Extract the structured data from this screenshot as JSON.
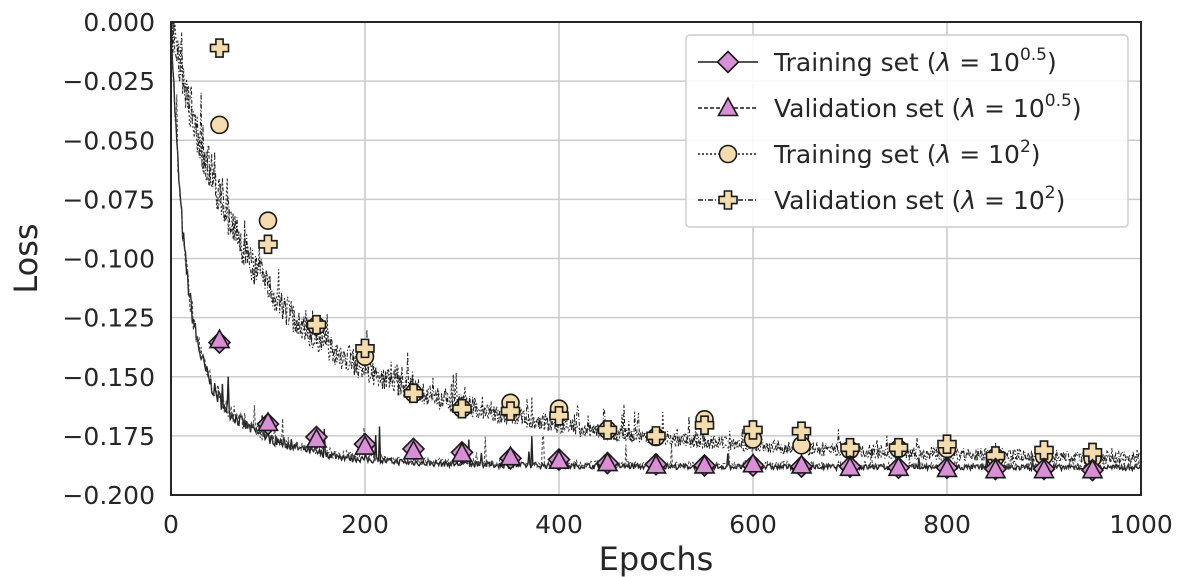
{
  "chart_data": {
    "type": "line",
    "xlabel": "Epochs",
    "ylabel": "Loss",
    "xlim": [
      0,
      1000
    ],
    "ylim": [
      -0.2,
      0.0
    ],
    "xticks": [
      0,
      200,
      400,
      600,
      800,
      1000
    ],
    "xtick_labels": [
      "0",
      "200",
      "400",
      "600",
      "800",
      "1000"
    ],
    "yticks": [
      0.0,
      -0.025,
      -0.05,
      -0.075,
      -0.1,
      -0.125,
      -0.15,
      -0.175,
      -0.2
    ],
    "ytick_labels": [
      "0.000",
      "−0.025",
      "−0.050",
      "−0.075",
      "−0.100",
      "−0.125",
      "−0.150",
      "−0.175",
      "−0.200"
    ],
    "grid": true,
    "legend_position": "top-right",
    "marker_x": [
      50,
      100,
      150,
      200,
      250,
      300,
      350,
      400,
      450,
      500,
      550,
      600,
      650,
      700,
      750,
      800,
      850,
      900,
      950
    ],
    "series": [
      {
        "name": "Training set (λ = 10^0.5)",
        "legend_parts": [
          "Training set (",
          "λ",
          " = 10",
          "0.5",
          ")"
        ],
        "marker": "diamond",
        "fill": "#d98fd6",
        "line_style": "solid",
        "values": [
          -0.1355,
          -0.17,
          -0.1755,
          -0.1785,
          -0.1805,
          -0.182,
          -0.1845,
          -0.185,
          -0.1865,
          -0.187,
          -0.1875,
          -0.1875,
          -0.188,
          -0.188,
          -0.1885,
          -0.1885,
          -0.189,
          -0.189,
          -0.1895
        ]
      },
      {
        "name": "Validation set (λ = 10^0.5)",
        "legend_parts": [
          "Validation set (",
          "λ",
          " = 10",
          "0.5",
          ")"
        ],
        "marker": "triangle",
        "fill": "#d98fd6",
        "line_style": "dashed",
        "values": [
          -0.1345,
          -0.1695,
          -0.1765,
          -0.1795,
          -0.1815,
          -0.1825,
          -0.184,
          -0.1855,
          -0.1865,
          -0.1875,
          -0.1875,
          -0.187,
          -0.1875,
          -0.1885,
          -0.1885,
          -0.189,
          -0.1895,
          -0.1895,
          -0.1895
        ]
      },
      {
        "name": "Training set (λ = 10^2)",
        "legend_parts": [
          "Training set (",
          "λ",
          " = 10",
          "2",
          ")"
        ],
        "marker": "circle",
        "fill": "#f5dcae",
        "line_style": "dotted",
        "values": [
          -0.0435,
          -0.084,
          -0.1285,
          -0.1415,
          -0.157,
          -0.1635,
          -0.161,
          -0.1635,
          -0.1725,
          -0.1755,
          -0.168,
          -0.1765,
          -0.179,
          -0.181,
          -0.1805,
          -0.1805,
          -0.184,
          -0.1835,
          -0.1845
        ]
      },
      {
        "name": "Validation set (λ = 10^2)",
        "legend_parts": [
          "Validation set (",
          "λ",
          " = 10",
          "2",
          ")"
        ],
        "marker": "plus",
        "fill": "#f5dcae",
        "line_style": "dashdot",
        "values": [
          -0.011,
          -0.094,
          -0.128,
          -0.138,
          -0.157,
          -0.1635,
          -0.1645,
          -0.1665,
          -0.1725,
          -0.175,
          -0.1705,
          -0.1725,
          -0.173,
          -0.18,
          -0.18,
          -0.1785,
          -0.1835,
          -0.181,
          -0.182
        ]
      }
    ]
  }
}
